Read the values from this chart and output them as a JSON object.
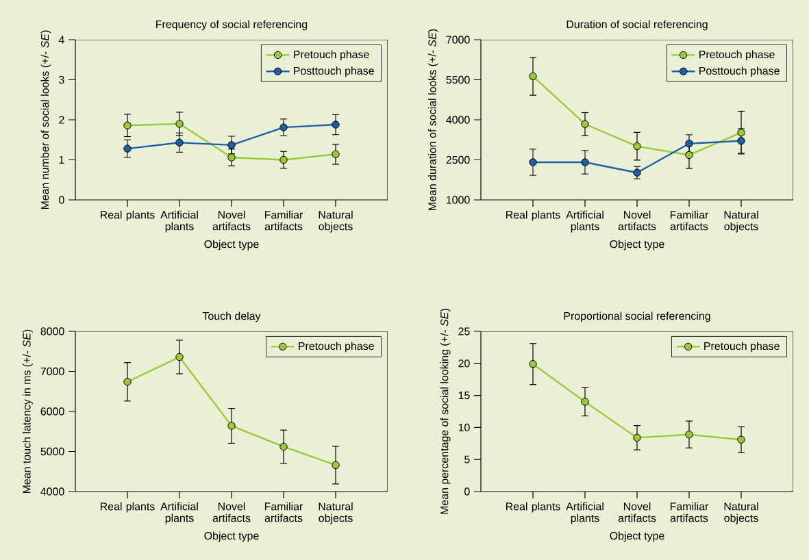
{
  "chart_data": [
    {
      "type": "line",
      "title": "Frequency of social referencing",
      "xlabel": "Object type",
      "ylabel": "Mean number of social looks (+/- *SE*)",
      "categories": [
        "Real plants",
        "Artificial plants",
        "Novel artifacts",
        "Familiar artifacts",
        "Natural objects"
      ],
      "ylim": [
        0,
        4
      ],
      "yticks": [
        0,
        1,
        2,
        3,
        4
      ],
      "legend": "top right",
      "marker": "circle",
      "series": [
        {
          "name": "Pretouch phase",
          "color": "#9cc93b",
          "values": [
            1.86,
            1.9,
            1.06,
            1.0,
            1.14
          ],
          "errors": [
            0.28,
            0.29,
            0.21,
            0.21,
            0.25
          ]
        },
        {
          "name": "Posttouch phase",
          "color": "#1f5fa6",
          "values": [
            1.28,
            1.43,
            1.37,
            1.81,
            1.88
          ],
          "errors": [
            0.22,
            0.24,
            0.22,
            0.21,
            0.25
          ]
        }
      ]
    },
    {
      "type": "line",
      "title": "Duration of social referencing",
      "xlabel": "Object type",
      "ylabel": "Mean duration of social looks (+/- *SE*)",
      "categories": [
        "Real plants",
        "Artificial plants",
        "Novel artifacts",
        "Familiar artifacts",
        "Natural objects"
      ],
      "ylim": [
        1000,
        7000
      ],
      "yticks": [
        1000,
        2500,
        4000,
        5500,
        7000
      ],
      "legend": "top right",
      "marker": "circle",
      "series": [
        {
          "name": "Pretouch phase",
          "color": "#9cc93b",
          "values": [
            5630,
            3840,
            3010,
            2680,
            3520
          ],
          "errors": [
            710,
            430,
            520,
            500,
            800
          ]
        },
        {
          "name": "Posttouch phase",
          "color": "#1f5fa6",
          "values": [
            2410,
            2410,
            2020,
            3110,
            3210
          ],
          "errors": [
            490,
            440,
            230,
            330,
            460
          ]
        }
      ]
    },
    {
      "type": "line",
      "title": "Touch delay",
      "xlabel": "Object type",
      "ylabel": "Mean touch latency in ms (+/- *SE*)",
      "categories": [
        "Real plants",
        "Artificial plants",
        "Novel artifacts",
        "Familiar artifacts",
        "Natural objects"
      ],
      "ylim": [
        4000,
        8000
      ],
      "yticks": [
        4000,
        5000,
        6000,
        7000,
        8000
      ],
      "legend": "top right",
      "marker": "circle",
      "series": [
        {
          "name": "Pretouch phase",
          "color": "#9cc93b",
          "values": [
            6740,
            7360,
            5640,
            5120,
            4660
          ],
          "errors": [
            480,
            420,
            435,
            415,
            470
          ]
        }
      ]
    },
    {
      "type": "line",
      "title": "Proportional social referencing",
      "xlabel": "Object type",
      "ylabel": "Mean percentage of social looking (+/- *SE*)",
      "categories": [
        "Real plants",
        "Artificial plants",
        "Novel artifacts",
        "Familiar artifacts",
        "Natural objects"
      ],
      "ylim": [
        0,
        25
      ],
      "yticks": [
        0,
        5,
        10,
        15,
        20,
        25
      ],
      "legend": "top right",
      "marker": "circle",
      "series": [
        {
          "name": "Pretouch phase",
          "color": "#9cc93b",
          "values": [
            19.9,
            14.0,
            8.4,
            8.9,
            8.1
          ],
          "errors": [
            3.2,
            2.2,
            1.9,
            2.1,
            2.0
          ]
        }
      ]
    }
  ]
}
